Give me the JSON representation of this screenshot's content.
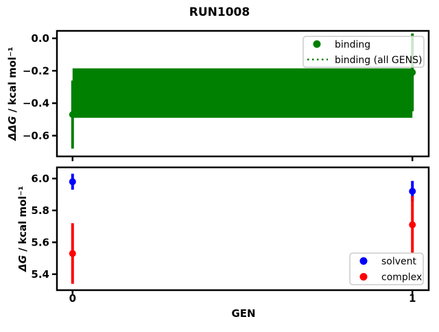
{
  "title": "RUN1008",
  "xlabel": "GEN",
  "background": "#ffffff",
  "colors": {
    "binding": "#008000",
    "solvent": "#0000ff",
    "complex": "#ff0000",
    "axes": "#000000",
    "legend_edge": "#cccccc"
  },
  "chart_data": [
    {
      "type": "scatter",
      "subplot": "top",
      "ylabel": "ΔΔG / kcal mol⁻¹",
      "ylabel_math": "ΔΔG",
      "ylabel_unit": " / kcal mol⁻¹",
      "xlim": [
        -0.046,
        1.048
      ],
      "ylim": [
        -0.728,
        0.046
      ],
      "grid": false,
      "xticks": [
        {
          "value": 0,
          "label": ""
        },
        {
          "value": 1,
          "label": ""
        }
      ],
      "yticks": [
        {
          "value": 0.0,
          "label": "0.0"
        },
        {
          "value": -0.2,
          "label": "−0.2"
        },
        {
          "value": -0.4,
          "label": "−0.4"
        },
        {
          "value": -0.6,
          "label": "−0.6"
        }
      ],
      "series": [
        {
          "name": "binding",
          "style": "errorbar-dot",
          "color": "#008000",
          "points": [
            {
              "x": 0,
              "y": -0.47,
              "yerr": 0.21
            },
            {
              "x": 1,
              "y": -0.21,
              "yerr": 0.24
            }
          ]
        },
        {
          "name": "binding (all GENS)",
          "style": "band-dotted",
          "color": "#008000",
          "x": [
            0,
            1
          ],
          "y": -0.34,
          "lo": -0.49,
          "hi": -0.185
        }
      ],
      "legend": {
        "location": "upper right",
        "entries": [
          {
            "label": "binding",
            "sample": "dot",
            "color": "#008000"
          },
          {
            "label": "binding (all GENS)",
            "sample": "dotted-line",
            "color": "#008000"
          }
        ]
      }
    },
    {
      "type": "scatter",
      "subplot": "bottom",
      "ylabel": "ΔG / kcal mol⁻¹",
      "ylabel_math": "ΔG",
      "ylabel_unit": " / kcal mol⁻¹",
      "xlim": [
        -0.046,
        1.048
      ],
      "ylim": [
        5.3,
        6.07
      ],
      "grid": false,
      "xticks": [
        {
          "value": 0,
          "label": "0"
        },
        {
          "value": 1,
          "label": "1"
        }
      ],
      "yticks": [
        {
          "value": 6.0,
          "label": "6.0"
        },
        {
          "value": 5.8,
          "label": "5.8"
        },
        {
          "value": 5.6,
          "label": "5.6"
        },
        {
          "value": 5.4,
          "label": "5.4"
        }
      ],
      "series": [
        {
          "name": "solvent",
          "style": "errorbar-dot",
          "color": "#0000ff",
          "points": [
            {
              "x": 0,
              "y": 5.98,
              "yerr": 0.05
            },
            {
              "x": 1,
              "y": 5.92,
              "yerr": 0.065
            }
          ]
        },
        {
          "name": "complex",
          "style": "errorbar-dot",
          "color": "#ff0000",
          "points": [
            {
              "x": 0,
              "y": 5.53,
              "yerr": 0.19
            },
            {
              "x": 1,
              "y": 5.71,
              "yerr": 0.18
            }
          ]
        }
      ],
      "legend": {
        "location": "lower right",
        "entries": [
          {
            "label": "solvent",
            "sample": "dot",
            "color": "#0000ff"
          },
          {
            "label": "complex",
            "sample": "dot",
            "color": "#ff0000"
          }
        ]
      }
    }
  ]
}
